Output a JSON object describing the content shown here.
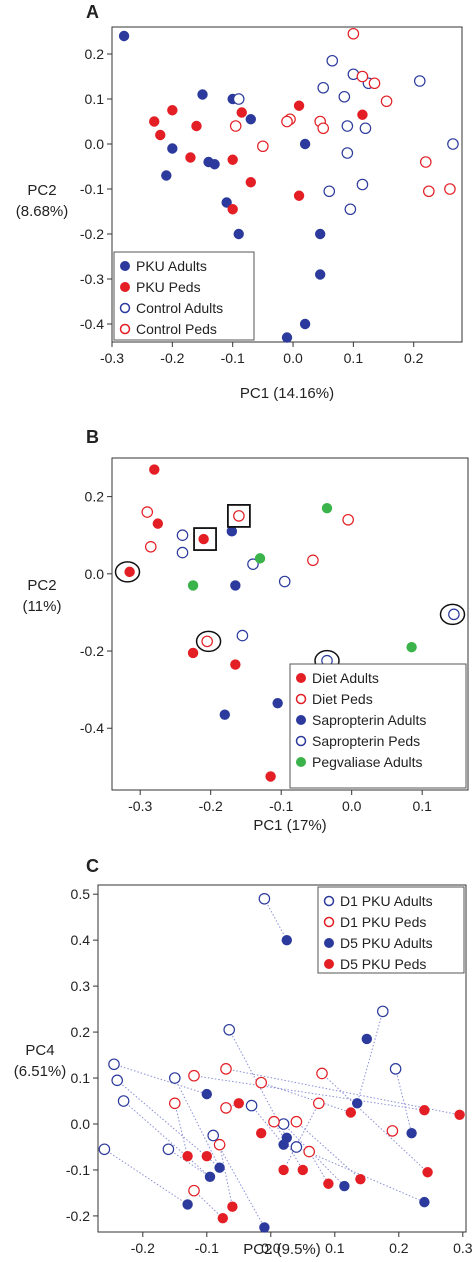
{
  "chart_data": [
    {
      "type": "scatter",
      "panel_label": "A",
      "xlabel": "PC1 (14.16%)",
      "ylabel": [
        "PC2",
        "(8.68%)"
      ],
      "xlim": [
        -0.3,
        0.28
      ],
      "ylim": [
        -0.44,
        0.26
      ],
      "xticks": [
        -0.3,
        -0.2,
        -0.1,
        0.0,
        0.1,
        0.2
      ],
      "xtick_labels": [
        "-0.3",
        "-0.2",
        "-0.1",
        "0.0",
        "0.1",
        "0.2"
      ],
      "yticks": [
        -0.4,
        -0.3,
        -0.2,
        -0.1,
        0.0,
        0.1,
        0.2
      ],
      "ytick_labels": [
        "-0.4",
        "-0.3",
        "-0.2",
        "-0.1",
        "0.0",
        "0.1",
        "0.2"
      ],
      "legend_position": "bottom-left",
      "series": [
        {
          "name": "PKU Adults",
          "color": "#2b3a9c",
          "filled": true,
          "points": [
            [
              -0.28,
              0.24
            ],
            [
              -0.15,
              0.11
            ],
            [
              -0.1,
              0.1
            ],
            [
              -0.2,
              -0.01
            ],
            [
              -0.21,
              -0.07
            ],
            [
              -0.14,
              -0.04
            ],
            [
              -0.13,
              -0.045
            ],
            [
              -0.11,
              -0.13
            ],
            [
              -0.09,
              -0.2
            ],
            [
              -0.07,
              0.055
            ],
            [
              0.02,
              0.0
            ],
            [
              0.045,
              -0.2
            ],
            [
              0.045,
              -0.29
            ],
            [
              0.02,
              -0.4
            ],
            [
              -0.01,
              -0.43
            ]
          ]
        },
        {
          "name": "PKU Peds",
          "color": "#e31e24",
          "filled": true,
          "points": [
            [
              -0.23,
              0.05
            ],
            [
              -0.2,
              0.075
            ],
            [
              -0.22,
              0.02
            ],
            [
              -0.17,
              -0.03
            ],
            [
              -0.16,
              0.04
            ],
            [
              -0.1,
              -0.035
            ],
            [
              -0.085,
              0.07
            ],
            [
              -0.1,
              -0.145
            ],
            [
              -0.07,
              -0.085
            ],
            [
              0.01,
              0.085
            ],
            [
              0.01,
              -0.115
            ],
            [
              0.115,
              0.065
            ]
          ]
        },
        {
          "name": "Control Adults",
          "color": "#2b3a9c",
          "filled": false,
          "points": [
            [
              -0.09,
              0.1
            ],
            [
              0.065,
              0.185
            ],
            [
              0.05,
              0.125
            ],
            [
              0.1,
              0.155
            ],
            [
              0.125,
              0.135
            ],
            [
              0.085,
              0.105
            ],
            [
              0.09,
              0.04
            ],
            [
              0.12,
              0.035
            ],
            [
              0.09,
              -0.02
            ],
            [
              0.06,
              -0.105
            ],
            [
              0.115,
              -0.09
            ],
            [
              0.095,
              -0.145
            ],
            [
              0.21,
              0.14
            ],
            [
              0.265,
              0.0
            ]
          ]
        },
        {
          "name": "Control Peds",
          "color": "#e31e24",
          "filled": false,
          "points": [
            [
              0.1,
              0.245
            ],
            [
              0.115,
              0.15
            ],
            [
              0.135,
              0.135
            ],
            [
              0.155,
              0.095
            ],
            [
              -0.095,
              0.04
            ],
            [
              -0.05,
              -0.005
            ],
            [
              -0.005,
              0.055
            ],
            [
              -0.01,
              0.05
            ],
            [
              0.045,
              0.05
            ],
            [
              0.05,
              0.035
            ],
            [
              0.22,
              -0.04
            ],
            [
              0.225,
              -0.105
            ],
            [
              0.26,
              -0.1
            ]
          ]
        }
      ]
    },
    {
      "type": "scatter",
      "panel_label": "B",
      "xlabel": "PC1 (17%)",
      "ylabel": [
        "PC2",
        "(11%)"
      ],
      "xlim": [
        -0.34,
        0.165
      ],
      "ylim": [
        -0.56,
        0.3
      ],
      "xticks": [
        -0.3,
        -0.2,
        -0.1,
        0.0,
        0.1
      ],
      "xtick_labels": [
        "-0.3",
        "-0.2",
        "-0.1",
        "0.0",
        "0.1"
      ],
      "yticks": [
        -0.4,
        -0.2,
        0.0,
        0.2
      ],
      "ytick_labels": [
        "-0.4",
        "-0.2",
        "0.0",
        "0.2"
      ],
      "legend_position": "bottom-right",
      "series": [
        {
          "name": "Diet Adults",
          "color": "#e31e24",
          "filled": true,
          "points": [
            [
              -0.28,
              0.27
            ],
            [
              -0.275,
              0.13
            ],
            [
              -0.21,
              0.09
            ],
            [
              -0.315,
              0.005
            ],
            [
              -0.225,
              -0.205
            ],
            [
              -0.165,
              -0.235
            ],
            [
              -0.115,
              -0.525
            ]
          ]
        },
        {
          "name": "Diet Peds",
          "color": "#e31e24",
          "filled": false,
          "points": [
            [
              -0.29,
              0.16
            ],
            [
              -0.285,
              0.07
            ],
            [
              -0.16,
              0.15
            ],
            [
              -0.205,
              -0.175
            ],
            [
              -0.055,
              0.035
            ],
            [
              -0.005,
              0.14
            ]
          ]
        },
        {
          "name": "Sapropterin Adults",
          "color": "#2b3a9c",
          "filled": true,
          "points": [
            [
              -0.17,
              0.11
            ],
            [
              -0.165,
              -0.03
            ],
            [
              -0.18,
              -0.365
            ],
            [
              -0.105,
              -0.335
            ]
          ]
        },
        {
          "name": "Sapropterin Peds",
          "color": "#2b3a9c",
          "filled": false,
          "points": [
            [
              -0.24,
              0.1
            ],
            [
              -0.24,
              0.055
            ],
            [
              -0.14,
              0.025
            ],
            [
              -0.155,
              -0.16
            ],
            [
              -0.095,
              -0.02
            ],
            [
              -0.035,
              -0.225
            ],
            [
              0.145,
              -0.105
            ]
          ]
        },
        {
          "name": "Pegvaliase Adults",
          "color": "#3ab34a",
          "filled": true,
          "points": [
            [
              -0.225,
              -0.03
            ],
            [
              -0.13,
              0.04
            ],
            [
              -0.035,
              0.17
            ],
            [
              0.085,
              -0.19
            ]
          ]
        }
      ],
      "highlights": [
        {
          "shape": "ellipse",
          "x": -0.318,
          "y": 0.005
        },
        {
          "shape": "ellipse",
          "x": -0.203,
          "y": -0.175
        },
        {
          "shape": "ellipse",
          "x": -0.035,
          "y": -0.225
        },
        {
          "shape": "ellipse",
          "x": 0.143,
          "y": -0.105
        },
        {
          "shape": "square",
          "x": -0.208,
          "y": 0.09
        },
        {
          "shape": "square",
          "x": -0.16,
          "y": 0.15
        }
      ]
    },
    {
      "type": "scatter",
      "panel_label": "C",
      "xlabel": "PC2 (9.5%)",
      "ylabel": [
        "PC4",
        "(6.51%)"
      ],
      "xlim": [
        -0.27,
        0.305
      ],
      "ylim": [
        -0.235,
        0.52
      ],
      "xticks": [
        -0.2,
        -0.1,
        0.0,
        0.1,
        0.2,
        0.3
      ],
      "xtick_labels": [
        "-0.2",
        "-0.1",
        "0.0",
        "0.1",
        "0.2",
        "0.3"
      ],
      "yticks": [
        -0.2,
        -0.1,
        0.0,
        0.1,
        0.2,
        0.3,
        0.4,
        0.5
      ],
      "ytick_labels": [
        "-0.2",
        "-0.1",
        "0.0",
        "0.1",
        "0.2",
        "0.3",
        "0.4",
        "0.5"
      ],
      "legend_position": "top-right",
      "series": [
        {
          "name": "D1 PKU Adults",
          "color": "#2b3a9c",
          "filled": false,
          "points": [
            [
              -0.01,
              0.49
            ],
            [
              -0.065,
              0.205
            ],
            [
              -0.245,
              0.13
            ],
            [
              -0.24,
              0.095
            ],
            [
              -0.23,
              0.05
            ],
            [
              -0.15,
              0.1
            ],
            [
              -0.03,
              0.04
            ],
            [
              0.02,
              0.0
            ],
            [
              0.04,
              -0.05
            ],
            [
              -0.16,
              -0.055
            ],
            [
              -0.26,
              -0.055
            ],
            [
              -0.09,
              -0.025
            ],
            [
              0.175,
              0.245
            ],
            [
              0.195,
              0.12
            ]
          ]
        },
        {
          "name": "D1 PKU Peds",
          "color": "#e31e24",
          "filled": false,
          "points": [
            [
              -0.12,
              0.105
            ],
            [
              -0.07,
              0.12
            ],
            [
              -0.015,
              0.09
            ],
            [
              0.08,
              0.11
            ],
            [
              0.075,
              0.045
            ],
            [
              -0.15,
              0.045
            ],
            [
              -0.07,
              0.035
            ],
            [
              0.005,
              0.005
            ],
            [
              0.04,
              0.005
            ],
            [
              -0.08,
              -0.045
            ],
            [
              0.06,
              -0.06
            ],
            [
              0.19,
              -0.015
            ],
            [
              -0.12,
              -0.145
            ]
          ]
        },
        {
          "name": "D5 PKU Adults",
          "color": "#2b3a9c",
          "filled": true,
          "points": [
            [
              0.025,
              0.4
            ],
            [
              0.15,
              0.185
            ],
            [
              -0.1,
              0.065
            ],
            [
              0.135,
              0.045
            ],
            [
              0.025,
              -0.03
            ],
            [
              0.02,
              -0.045
            ],
            [
              -0.095,
              -0.115
            ],
            [
              -0.08,
              -0.095
            ],
            [
              0.115,
              -0.135
            ],
            [
              -0.13,
              -0.175
            ],
            [
              0.24,
              -0.17
            ],
            [
              -0.01,
              -0.225
            ],
            [
              0.22,
              -0.02
            ]
          ]
        },
        {
          "name": "D5 PKU Peds",
          "color": "#e31e24",
          "filled": true,
          "points": [
            [
              -0.05,
              0.045
            ],
            [
              -0.015,
              -0.02
            ],
            [
              0.02,
              -0.1
            ],
            [
              0.05,
              -0.1
            ],
            [
              0.09,
              -0.13
            ],
            [
              0.14,
              -0.12
            ],
            [
              -0.13,
              -0.07
            ],
            [
              -0.1,
              -0.07
            ],
            [
              -0.06,
              -0.18
            ],
            [
              -0.075,
              -0.205
            ],
            [
              0.24,
              0.03
            ],
            [
              0.295,
              0.02
            ],
            [
              0.245,
              -0.105
            ],
            [
              0.125,
              0.025
            ]
          ]
        }
      ],
      "pairs": [
        [
          [
            -0.245,
            0.13
          ],
          [
            -0.1,
            0.065
          ]
        ],
        [
          [
            -0.24,
            0.095
          ],
          [
            -0.08,
            -0.095
          ]
        ],
        [
          [
            -0.23,
            0.05
          ],
          [
            -0.095,
            -0.115
          ]
        ],
        [
          [
            -0.15,
            0.1
          ],
          [
            -0.08,
            -0.095
          ]
        ],
        [
          [
            -0.26,
            -0.055
          ],
          [
            -0.13,
            -0.175
          ]
        ],
        [
          [
            -0.16,
            -0.055
          ],
          [
            -0.095,
            -0.115
          ]
        ],
        [
          [
            -0.065,
            0.205
          ],
          [
            0.025,
            -0.03
          ]
        ],
        [
          [
            -0.03,
            0.04
          ],
          [
            0.02,
            -0.045
          ]
        ],
        [
          [
            0.02,
            0.0
          ],
          [
            0.115,
            -0.135
          ]
        ],
        [
          [
            -0.09,
            -0.025
          ],
          [
            -0.01,
            -0.225
          ]
        ],
        [
          [
            0.175,
            0.245
          ],
          [
            0.135,
            0.045
          ]
        ],
        [
          [
            0.195,
            0.12
          ],
          [
            0.22,
            -0.02
          ]
        ],
        [
          [
            -0.01,
            0.49
          ],
          [
            0.025,
            0.4
          ]
        ],
        [
          [
            0.04,
            -0.05
          ],
          [
            0.24,
            -0.17
          ]
        ],
        [
          [
            -0.12,
            0.105
          ],
          [
            0.24,
            0.03
          ]
        ],
        [
          [
            -0.07,
            0.12
          ],
          [
            0.295,
            0.02
          ]
        ],
        [
          [
            -0.015,
            0.09
          ],
          [
            0.125,
            0.025
          ]
        ],
        [
          [
            0.08,
            0.11
          ],
          [
            0.245,
            -0.105
          ]
        ],
        [
          [
            -0.15,
            0.045
          ],
          [
            -0.13,
            -0.07
          ]
        ],
        [
          [
            -0.07,
            0.035
          ],
          [
            -0.05,
            0.045
          ]
        ],
        [
          [
            0.005,
            0.005
          ],
          [
            0.05,
            -0.1
          ]
        ],
        [
          [
            0.04,
            0.005
          ],
          [
            0.14,
            -0.12
          ]
        ],
        [
          [
            -0.08,
            -0.045
          ],
          [
            -0.06,
            -0.18
          ]
        ],
        [
          [
            0.06,
            -0.06
          ],
          [
            0.09,
            -0.13
          ]
        ],
        [
          [
            -0.12,
            -0.145
          ],
          [
            -0.075,
            -0.205
          ]
        ],
        [
          [
            0.075,
            0.045
          ],
          [
            0.02,
            -0.1
          ]
        ]
      ]
    }
  ]
}
